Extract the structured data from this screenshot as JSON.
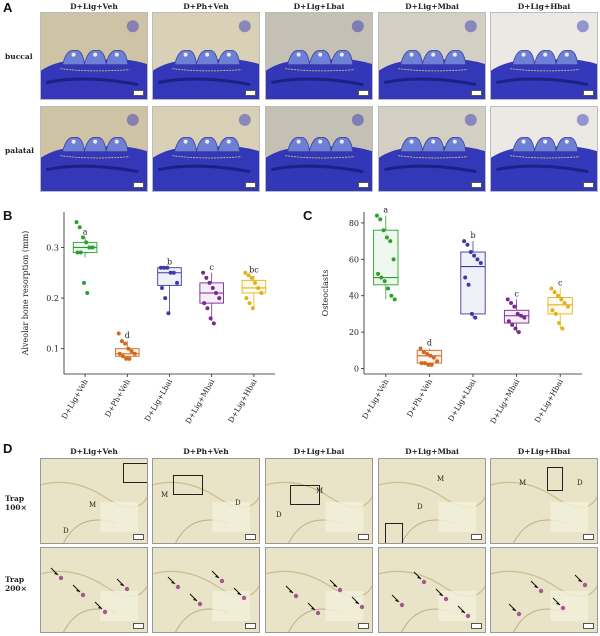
{
  "panels": {
    "a": "A",
    "b": "B",
    "c": "C",
    "d": "D"
  },
  "groups": [
    "D+Lig+Veh",
    "D+Ph+Veh",
    "D+Lig+Lbai",
    "D+Lig+Mbai",
    "D+Lig+Hbai"
  ],
  "panelA": {
    "rows": [
      "buccal",
      "palatal"
    ]
  },
  "panelD": {
    "rows": [
      "Trap 100×",
      "Trap 200×"
    ],
    "label_m": "M",
    "label_d": "D"
  },
  "colors": {
    "veh": "#2ea02e",
    "ph": "#d2691e",
    "lbai": "#3e3aa8",
    "mbai": "#7a2b8e",
    "hbai": "#e3b21a",
    "stain": "#2a2fb8",
    "tissue": "#e9e4c8"
  },
  "chart_data": [
    {
      "type": "box",
      "ylabel": "Alveolar bone resorption (mm)",
      "categories": [
        "D+Lig+Veh",
        "D+Ph+Veh",
        "D+Lig+Lbai",
        "D+Lig+Mbai",
        "D+Lig+Hbai"
      ],
      "ylim": [
        0.05,
        0.37
      ],
      "yticks": [
        0.1,
        0.2,
        0.3
      ],
      "letters": [
        "a",
        "d",
        "b",
        "c",
        "bc"
      ],
      "boxes": [
        {
          "min": 0.28,
          "q1": 0.29,
          "median": 0.3,
          "q3": 0.31,
          "max": 0.32
        },
        {
          "min": 0.08,
          "q1": 0.085,
          "median": 0.09,
          "q3": 0.1,
          "max": 0.115
        },
        {
          "min": 0.17,
          "q1": 0.225,
          "median": 0.25,
          "q3": 0.26,
          "max": 0.26
        },
        {
          "min": 0.155,
          "q1": 0.19,
          "median": 0.21,
          "q3": 0.23,
          "max": 0.25
        },
        {
          "min": 0.18,
          "q1": 0.21,
          "median": 0.22,
          "q3": 0.235,
          "max": 0.245
        }
      ],
      "points": [
        [
          0.35,
          0.34,
          0.32,
          0.31,
          0.3,
          0.3,
          0.29,
          0.29,
          0.23,
          0.21
        ],
        [
          0.13,
          0.115,
          0.11,
          0.1,
          0.095,
          0.09,
          0.09,
          0.085,
          0.08,
          0.08
        ],
        [
          0.26,
          0.26,
          0.26,
          0.25,
          0.25,
          0.23,
          0.22,
          0.2,
          0.17
        ],
        [
          0.25,
          0.24,
          0.23,
          0.22,
          0.21,
          0.2,
          0.19,
          0.18,
          0.16,
          0.15
        ],
        [
          0.25,
          0.245,
          0.24,
          0.23,
          0.22,
          0.21,
          0.2,
          0.19,
          0.18
        ]
      ]
    },
    {
      "type": "box",
      "ylabel": "Osteoclasts",
      "categories": [
        "D+Lig+Veh",
        "D+Ph+Veh",
        "D+Lig+Lbai",
        "D+Lig+Mbai",
        "D+Lig+Hbai"
      ],
      "ylim": [
        -3,
        86
      ],
      "yticks": [
        0,
        20,
        40,
        60,
        80
      ],
      "letters": [
        "a",
        "d",
        "b",
        "c",
        "c"
      ],
      "boxes": [
        {
          "min": 38,
          "q1": 46,
          "median": 50,
          "q3": 76,
          "max": 84
        },
        {
          "min": 2,
          "q1": 3,
          "median": 7,
          "q3": 10,
          "max": 11
        },
        {
          "min": 28,
          "q1": 30,
          "median": 56,
          "q3": 64,
          "max": 70
        },
        {
          "min": 20,
          "q1": 25,
          "median": 29,
          "q3": 32,
          "max": 38
        },
        {
          "min": 22,
          "q1": 30,
          "median": 35,
          "q3": 39,
          "max": 44
        }
      ],
      "points": [
        [
          84,
          82,
          76,
          72,
          70,
          60,
          52,
          50,
          48,
          44,
          40,
          38
        ],
        [
          11,
          9,
          8,
          7,
          6,
          4,
          3,
          3,
          2,
          2
        ],
        [
          70,
          68,
          64,
          62,
          60,
          58,
          50,
          46,
          30,
          28
        ],
        [
          38,
          36,
          34,
          30,
          29,
          28,
          26,
          24,
          22,
          20
        ],
        [
          44,
          42,
          40,
          38,
          36,
          34,
          32,
          30,
          25,
          22
        ]
      ]
    }
  ]
}
